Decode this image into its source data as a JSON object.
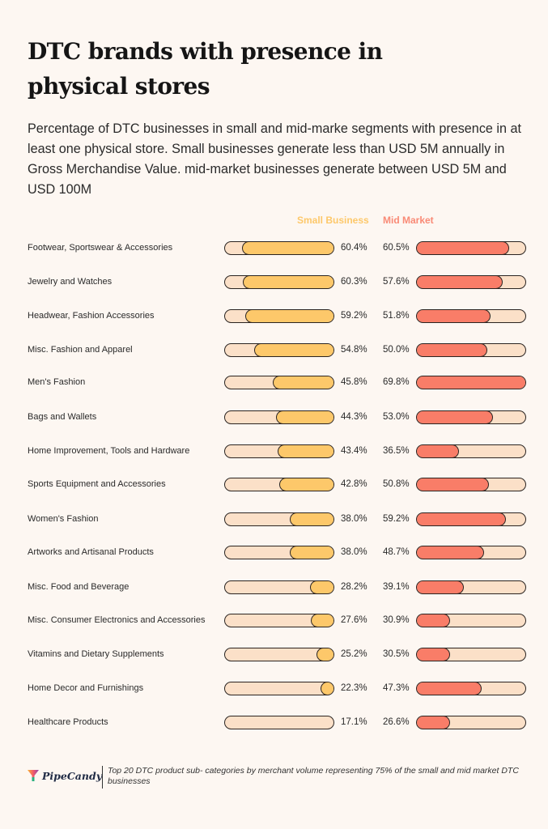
{
  "header": {
    "title": "DTC brands with presence in physical stores",
    "subtitle": "Percentage of DTC businesses in small and mid-marke segments with presence in at least one physical store. Small businesses generate less than USD 5M annually in Gross Merchandise Value. mid-market businesses generate between USD 5M and USD 100M"
  },
  "colors": {
    "small": "#fdc86a",
    "mid": "#f97d68",
    "track": "#fbe0c8",
    "outline": "#2a2421"
  },
  "chart_data": {
    "type": "bar",
    "title": "DTC brands with presence in physical stores",
    "xlabel": "",
    "ylabel": "",
    "legend": [
      "Small Business",
      "Mid Market"
    ],
    "legend_position": "top-right",
    "categories": [
      "Footwear, Sportswear & Accessories",
      "Jewelry and Watches",
      "Headwear, Fashion Accessories",
      "Misc. Fashion and Apparel",
      "Men's Fashion",
      "Bags and Wallets",
      "Home Improvement, Tools and Hardware",
      "Sports Equipment and Accessories",
      "Women's Fashion",
      "Artworks and Artisanal Products",
      "Misc. Food and Beverage",
      "Misc. Consumer Electronics and Accessories",
      "Vitamins and Dietary Supplements",
      "Home Decor and Furnishings",
      "Healthcare Products"
    ],
    "series": [
      {
        "name": "Small Business",
        "values": [
          60.4,
          60.3,
          59.2,
          54.8,
          45.8,
          44.3,
          43.4,
          42.8,
          38.0,
          38.0,
          28.2,
          27.6,
          25.2,
          22.3,
          17.1
        ]
      },
      {
        "name": "Mid Market",
        "values": [
          60.5,
          57.6,
          51.8,
          50.0,
          69.8,
          53.0,
          36.5,
          50.8,
          59.2,
          48.7,
          39.1,
          30.9,
          30.5,
          47.3,
          26.6
        ]
      }
    ],
    "labels_small": [
      "60.4%",
      "60.3%",
      "59.2%",
      "54.8%",
      "45.8%",
      "44.3%",
      "43.4%",
      "42.8%",
      "38.0%",
      "38.0%",
      "28.2%",
      "27.6%",
      "25.2%",
      "22.3%",
      "17.1%"
    ],
    "labels_mid": [
      "60.5%",
      "57.6%",
      "51.8%",
      "50.0%",
      "69.8%",
      "53.0%",
      "36.5%",
      "50.8%",
      "59.2%",
      "48.7%",
      "39.1%",
      "30.9%",
      "30.5%",
      "47.3%",
      "26.6%"
    ],
    "xlim": [
      17,
      69.8
    ]
  },
  "footer": {
    "brand": "PipeCandy",
    "note": "Top 20 DTC product sub- categories by merchant volume representing 75% of the small and mid market DTC businesses"
  }
}
